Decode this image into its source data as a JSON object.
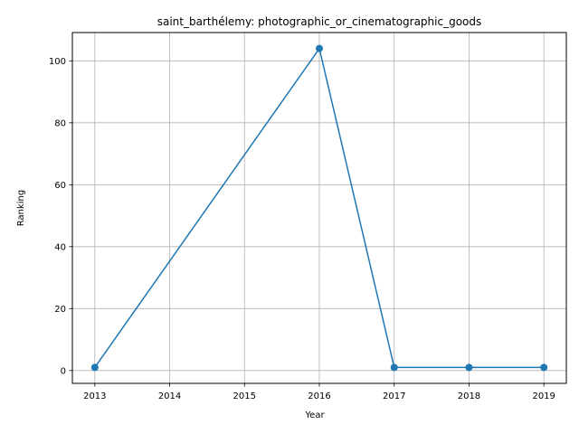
{
  "chart_data": {
    "type": "line",
    "title": "saint_barthélemy: photographic_or_cinematographic_goods",
    "xlabel": "Year",
    "ylabel": "Ranking",
    "x": [
      2013,
      2016,
      2017,
      2018,
      2019
    ],
    "series": [
      {
        "values": [
          1,
          104,
          1,
          1,
          1
        ],
        "color": "#1f77b4",
        "marker": "circle"
      }
    ],
    "xlim": [
      2012.7,
      2019.3
    ],
    "ylim": [
      -4.15,
      109.15
    ],
    "xticks": [
      2013,
      2014,
      2015,
      2016,
      2017,
      2018,
      2019
    ],
    "yticks": [
      0,
      20,
      40,
      60,
      80,
      100
    ],
    "grid": true,
    "legend": "none"
  }
}
